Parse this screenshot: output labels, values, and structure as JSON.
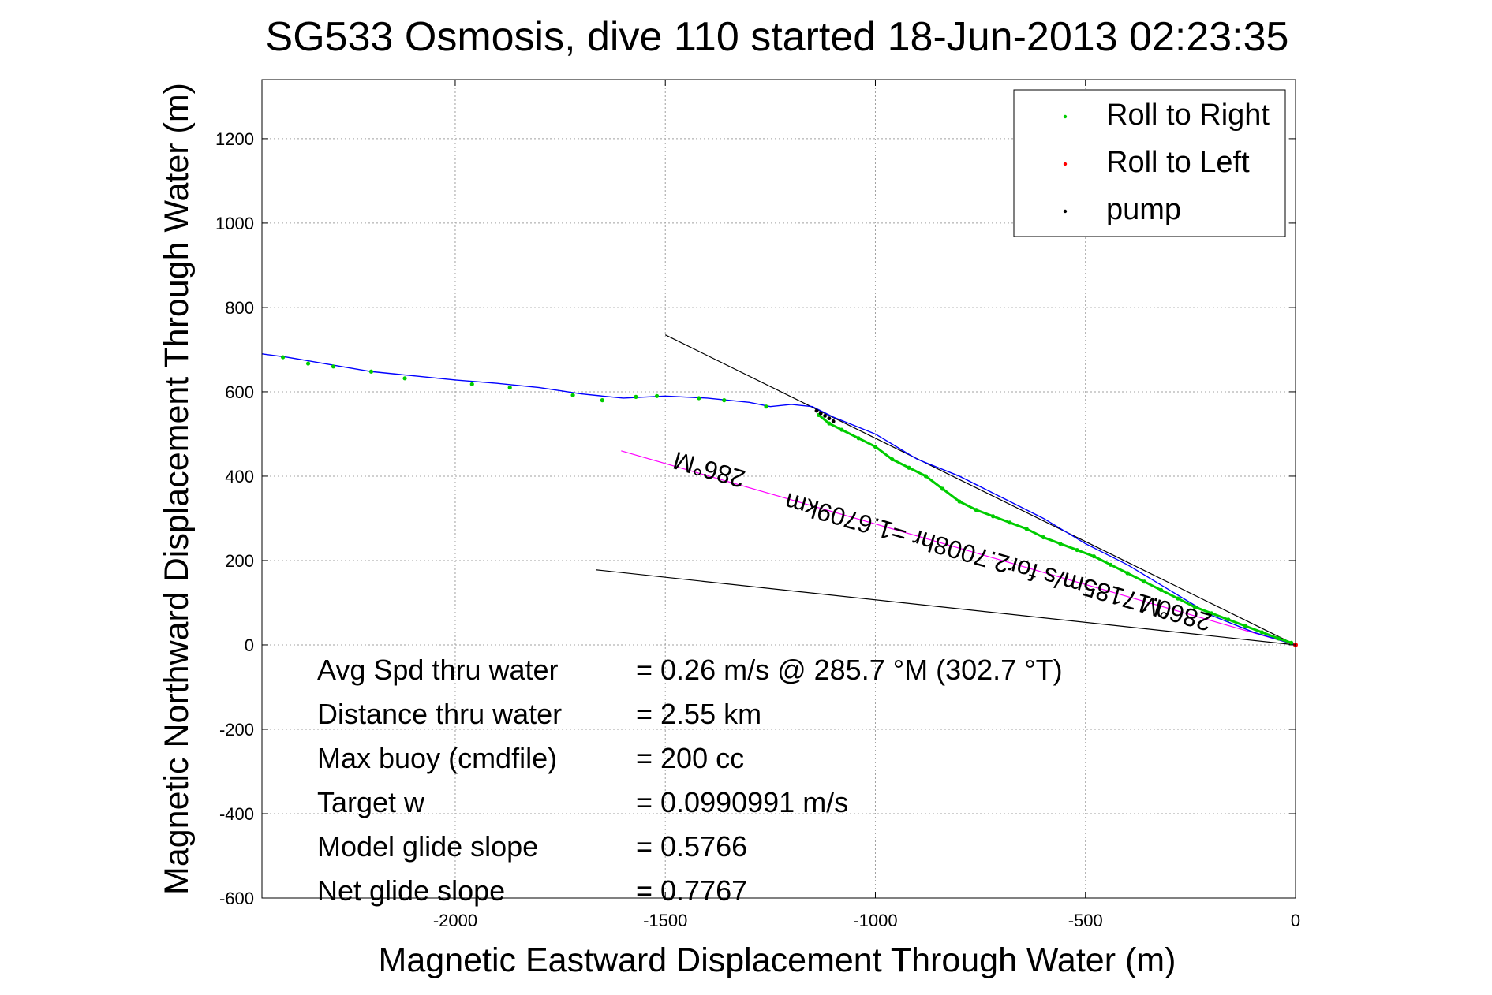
{
  "chart_data": {
    "type": "line",
    "title": "SG533 Osmosis, dive 110 started 18-Jun-2013 02:23:35",
    "xlabel": "Magnetic Eastward Displacement Through Water (m)",
    "ylabel": "Magnetic Northward Displacement Through Water (m)",
    "xlim": [
      -2460,
      0
    ],
    "ylim": [
      -600,
      1340
    ],
    "xticks": [
      -2000,
      -1500,
      -1000,
      -500,
      0
    ],
    "yticks": [
      -600,
      -400,
      -200,
      0,
      200,
      400,
      600,
      800,
      1000,
      1200
    ],
    "grid": true,
    "legend_position": "top-right",
    "legend": [
      {
        "label": "Roll to Right",
        "color": "#00cc00"
      },
      {
        "label": "Roll to Left",
        "color": "#ff0000"
      },
      {
        "label": "pump",
        "color": "#000000"
      }
    ],
    "track": {
      "color": "#0000ff",
      "x": [
        0,
        -100,
        -200,
        -300,
        -400,
        -500,
        -600,
        -700,
        -800,
        -900,
        -1000,
        -1100,
        -1150,
        -1200,
        -1250,
        -1300,
        -1400,
        -1500,
        -1600,
        -1700,
        -1800,
        -1900,
        -2000,
        -2100,
        -2200,
        -2300,
        -2400,
        -2460
      ],
      "y": [
        0,
        30,
        70,
        130,
        190,
        240,
        300,
        350,
        400,
        440,
        500,
        540,
        565,
        570,
        565,
        575,
        585,
        590,
        585,
        595,
        610,
        620,
        628,
        638,
        648,
        665,
        682,
        690
      ]
    },
    "roll_right": {
      "color": "#00cc00",
      "x": [
        -10,
        -40,
        -80,
        -120,
        -160,
        -200,
        -240,
        -280,
        -320,
        -360,
        -400,
        -440,
        -480,
        -520,
        -560,
        -600,
        -640,
        -680,
        -720,
        -760,
        -800,
        -840,
        -880,
        -920,
        -960,
        -1000,
        -1040,
        -1080,
        -1110,
        -1135,
        -1260,
        -1360,
        -1420,
        -1520,
        -1570,
        -1650,
        -1720,
        -1870,
        -1960,
        -2120,
        -2200,
        -2290,
        -2350,
        -2410
      ],
      "y": [
        5,
        15,
        30,
        45,
        60,
        75,
        90,
        110,
        130,
        150,
        170,
        190,
        210,
        225,
        240,
        255,
        275,
        290,
        305,
        320,
        340,
        370,
        400,
        420,
        440,
        470,
        490,
        510,
        525,
        545,
        565,
        580,
        585,
        590,
        588,
        580,
        592,
        610,
        618,
        632,
        648,
        660,
        667,
        682
      ]
    },
    "pump": {
      "color": "#000000",
      "x": [
        -1100,
        -1110,
        -1120,
        -1130,
        -1140
      ],
      "y": [
        530,
        537,
        543,
        549,
        555
      ]
    },
    "reference_lines": [
      {
        "color": "#000000",
        "x": [
          -1500,
          0
        ],
        "y": [
          735,
          0
        ]
      },
      {
        "color": "#000000",
        "x": [
          -1665,
          0
        ],
        "y": [
          178,
          0
        ]
      },
      {
        "color": "#ff00ff",
        "x": [
          -1605,
          0
        ],
        "y": [
          460,
          0
        ]
      }
    ],
    "annotations": [
      {
        "text": "0.17185m/s for2.7008hr =1.6709km",
        "x": -750,
        "y": 230,
        "rotate": 196
      },
      {
        "text": "286°M",
        "x": -1390,
        "y": 435,
        "rotate": 196
      },
      {
        "text": "286°M",
        "x": -280,
        "y": 95,
        "rotate": 196
      }
    ],
    "stats": [
      {
        "label": "Avg Spd thru water",
        "value": "=  0.26 m/s @ 285.7 °M (302.7 °T)"
      },
      {
        "label": "Distance thru water",
        "value": "=  2.55 km"
      },
      {
        "label": "Max buoy (cmdfile)",
        "value": "= 200 cc"
      },
      {
        "label": "Target w",
        "value": "= 0.0990991 m/s"
      },
      {
        "label": "Model glide slope",
        "value": "= 0.5766"
      },
      {
        "label": "Net glide slope",
        "value": "= 0.7767"
      }
    ]
  }
}
